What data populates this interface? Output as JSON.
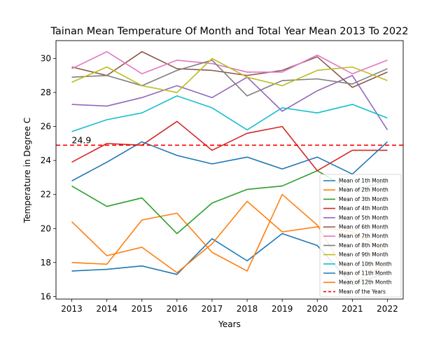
{
  "chart_data": {
    "type": "line",
    "title": "Tainan Mean Temperature Of Month and Total Year Mean 2013 To 2022",
    "xlabel": "Years",
    "ylabel": "Temperature in Degree C",
    "x": [
      2013,
      2014,
      2015,
      2016,
      2017,
      2018,
      2019,
      2020,
      2021,
      2022
    ],
    "xlim": [
      2012.55,
      2022.45
    ],
    "ylim": [
      15.85,
      31.05
    ],
    "yticks": [
      16,
      18,
      20,
      22,
      24,
      26,
      28,
      30
    ],
    "grid": false,
    "legend_position": "lower right",
    "series": [
      {
        "name": "Mean of 1th Month",
        "color": "#1f77b4",
        "values": [
          17.5,
          17.6,
          17.8,
          17.3,
          19.4,
          18.1,
          19.7,
          19.0,
          16.7,
          17.4
        ]
      },
      {
        "name": "Mean of 2th Month",
        "color": "#ff7f0e",
        "values": [
          18.0,
          17.9,
          20.5,
          20.9,
          18.6,
          17.5,
          22.0,
          20.2,
          16.8,
          17.9
        ]
      },
      {
        "name": "Mean of 3th Month",
        "color": "#2ca02c",
        "values": [
          22.5,
          21.3,
          21.8,
          19.7,
          21.5,
          22.3,
          22.5,
          23.4,
          22.2,
          22.8
        ]
      },
      {
        "name": "Mean of 4th Month",
        "color": "#d62728",
        "values": [
          23.9,
          25.0,
          24.9,
          26.3,
          24.6,
          25.6,
          26.0,
          23.4,
          24.6,
          24.6
        ]
      },
      {
        "name": "Mean of 5th Month",
        "color": "#9467bd",
        "values": [
          27.3,
          27.2,
          27.7,
          28.4,
          27.7,
          28.9,
          26.9,
          28.1,
          29.0,
          25.8
        ]
      },
      {
        "name": "Mean of 6th Month",
        "color": "#8c564b",
        "values": [
          29.5,
          29.0,
          30.4,
          29.4,
          29.3,
          29.0,
          29.3,
          30.1,
          28.3,
          29.2
        ]
      },
      {
        "name": "Mean of 7th Month",
        "color": "#e377c2",
        "values": [
          29.4,
          30.4,
          29.1,
          29.9,
          29.7,
          29.2,
          29.2,
          30.2,
          29.1,
          29.9
        ]
      },
      {
        "name": "Mean of 8th Month",
        "color": "#7f7f7f",
        "values": [
          28.9,
          29.0,
          28.4,
          29.3,
          29.9,
          27.8,
          28.7,
          28.8,
          28.5,
          29.4
        ]
      },
      {
        "name": "Mean of 9th Month",
        "color": "#bcbd22",
        "values": [
          28.6,
          29.5,
          28.4,
          28.0,
          30.0,
          28.9,
          28.4,
          29.3,
          29.5,
          28.7
        ]
      },
      {
        "name": "Mean of 10th Month",
        "color": "#17becf",
        "values": [
          25.7,
          26.4,
          26.8,
          27.8,
          27.1,
          25.8,
          27.1,
          26.8,
          27.3,
          26.5
        ]
      },
      {
        "name": "Mean of 11th Month",
        "color": "#1f77b4",
        "values": [
          22.8,
          23.9,
          25.1,
          24.3,
          23.8,
          24.2,
          23.5,
          24.2,
          23.2,
          25.1
        ]
      },
      {
        "name": "Mean of 12th Month",
        "color": "#ff7f0e",
        "values": [
          20.4,
          18.4,
          18.9,
          17.4,
          19.1,
          21.6,
          19.8,
          20.1,
          19.8,
          18.6
        ]
      }
    ],
    "mean_line": {
      "name": "Mean of the Years",
      "value": 24.9,
      "label": "24.9",
      "color": "#ff0000"
    }
  }
}
